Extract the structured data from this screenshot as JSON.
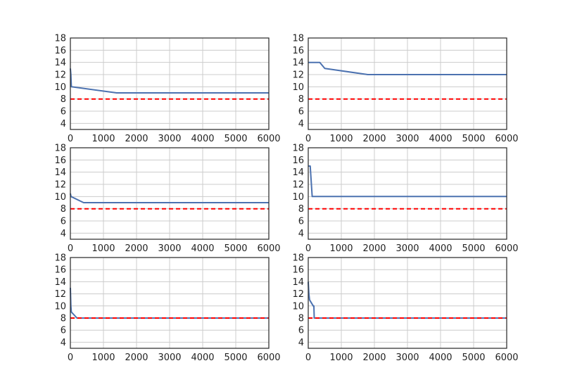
{
  "colors": {
    "series_line": "#4c72b0",
    "reference_line": "#ff0000",
    "grid": "#cccccc",
    "frame": "#262626",
    "background": "#ffffff"
  },
  "chart_data": [
    {
      "type": "line",
      "xlim": [
        0,
        6000
      ],
      "ylim": [
        3,
        18
      ],
      "xticks": [
        "0",
        "1000",
        "2000",
        "3000",
        "4000",
        "5000",
        "6000"
      ],
      "yticks": [
        "4",
        "6",
        "8",
        "10",
        "12",
        "14",
        "16",
        "18"
      ],
      "grid": true,
      "series": [
        {
          "style": "solid",
          "x": [
            0,
            15,
            30,
            1400,
            6000
          ],
          "y": [
            13,
            12,
            10,
            9,
            9
          ]
        },
        {
          "style": "dashed",
          "x": [
            0,
            6000
          ],
          "y": [
            8,
            8
          ]
        }
      ]
    },
    {
      "type": "line",
      "xlim": [
        0,
        6000
      ],
      "ylim": [
        3,
        18
      ],
      "xticks": [
        "0",
        "1000",
        "2000",
        "3000",
        "4000",
        "5000",
        "6000"
      ],
      "yticks": [
        "4",
        "6",
        "8",
        "10",
        "12",
        "14",
        "16",
        "18"
      ],
      "grid": true,
      "series": [
        {
          "style": "solid",
          "x": [
            0,
            350,
            500,
            1800,
            6000
          ],
          "y": [
            14,
            14,
            13,
            12,
            12
          ]
        },
        {
          "style": "dashed",
          "x": [
            0,
            6000
          ],
          "y": [
            8,
            8
          ]
        }
      ]
    },
    {
      "type": "line",
      "xlim": [
        0,
        6000
      ],
      "ylim": [
        3,
        18
      ],
      "xticks": [
        "0",
        "1000",
        "2000",
        "3000",
        "4000",
        "5000",
        "6000"
      ],
      "yticks": [
        "4",
        "6",
        "8",
        "10",
        "12",
        "14",
        "16",
        "18"
      ],
      "grid": true,
      "series": [
        {
          "style": "solid",
          "x": [
            0,
            20,
            400,
            6000
          ],
          "y": [
            10.5,
            10,
            9,
            9
          ]
        },
        {
          "style": "dashed",
          "x": [
            0,
            6000
          ],
          "y": [
            8,
            8
          ]
        }
      ]
    },
    {
      "type": "line",
      "xlim": [
        0,
        6000
      ],
      "ylim": [
        3,
        18
      ],
      "xticks": [
        "0",
        "1000",
        "2000",
        "3000",
        "4000",
        "5000",
        "6000"
      ],
      "yticks": [
        "4",
        "6",
        "8",
        "10",
        "12",
        "14",
        "16",
        "18"
      ],
      "grid": true,
      "series": [
        {
          "style": "solid",
          "x": [
            0,
            60,
            120,
            6000
          ],
          "y": [
            15,
            15,
            10,
            10
          ]
        },
        {
          "style": "dashed",
          "x": [
            0,
            6000
          ],
          "y": [
            8,
            8
          ]
        }
      ]
    },
    {
      "type": "line",
      "xlim": [
        0,
        6000
      ],
      "ylim": [
        3,
        18
      ],
      "xticks": [
        "0",
        "1000",
        "2000",
        "3000",
        "4000",
        "5000",
        "6000"
      ],
      "yticks": [
        "4",
        "6",
        "8",
        "10",
        "12",
        "14",
        "16",
        "18"
      ],
      "grid": true,
      "series": [
        {
          "style": "solid",
          "x": [
            0,
            15,
            30,
            200,
            6000
          ],
          "y": [
            13,
            10,
            9,
            8,
            8
          ]
        },
        {
          "style": "dashed",
          "x": [
            0,
            6000
          ],
          "y": [
            8,
            8
          ]
        }
      ]
    },
    {
      "type": "line",
      "xlim": [
        0,
        6000
      ],
      "ylim": [
        3,
        18
      ],
      "xticks": [
        "0",
        "1000",
        "2000",
        "3000",
        "4000",
        "5000",
        "6000"
      ],
      "yticks": [
        "4",
        "6",
        "8",
        "10",
        "12",
        "14",
        "16",
        "18"
      ],
      "grid": true,
      "series": [
        {
          "style": "solid",
          "x": [
            0,
            20,
            40,
            150,
            170,
            180,
            6000
          ],
          "y": [
            14,
            12,
            11,
            10,
            10,
            8,
            8
          ]
        },
        {
          "style": "dashed",
          "x": [
            0,
            6000
          ],
          "y": [
            8,
            8
          ]
        }
      ]
    }
  ]
}
